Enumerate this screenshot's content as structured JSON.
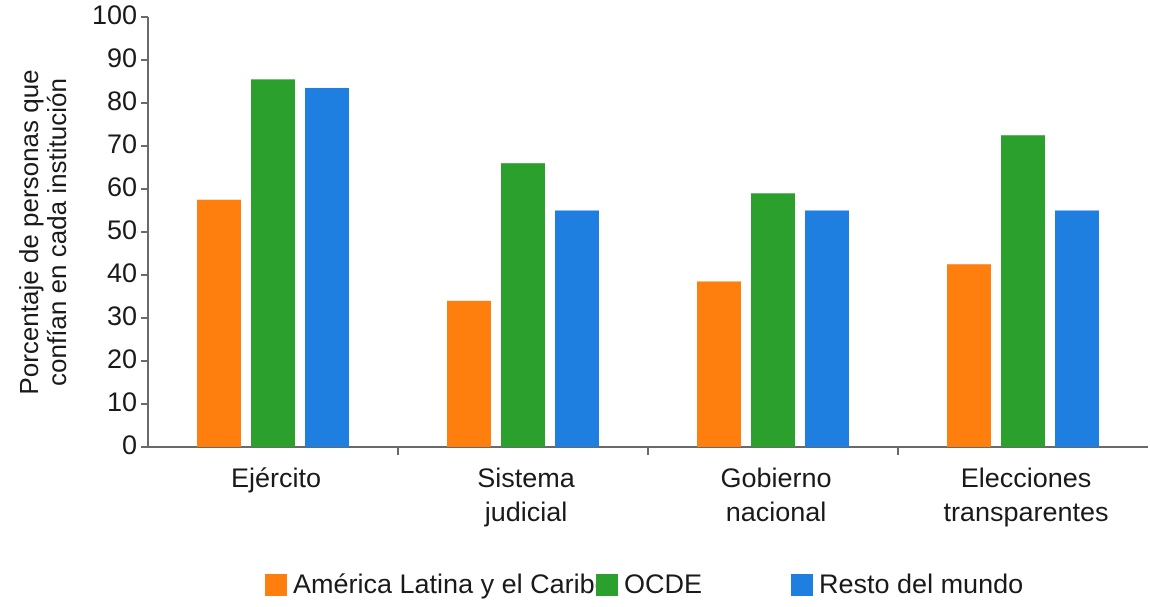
{
  "chart_data": {
    "type": "bar",
    "title": "",
    "xlabel": "",
    "ylabel_lines": [
      "Porcentaje de personas que",
      "confían en cada institución"
    ],
    "ylim": [
      0,
      100
    ],
    "yticks": [
      "0",
      "10",
      "20",
      "30",
      "40",
      "50",
      "60",
      "70",
      "80",
      "90",
      "100"
    ],
    "categories": [
      [
        "Ejército"
      ],
      [
        "Sistema",
        "judicial"
      ],
      [
        "Gobierno",
        "nacional"
      ],
      [
        "Elecciones",
        "transparentes"
      ]
    ],
    "series": [
      {
        "name": "América Latina y el Caribe",
        "color": "#ff7f0e",
        "values": [
          57.5,
          34,
          38.5,
          42.5
        ]
      },
      {
        "name": "OCDE",
        "color": "#2ca02c",
        "values": [
          85.5,
          66,
          59,
          72.5
        ]
      },
      {
        "name": "Resto del mundo",
        "color": "#1f7fe0",
        "values": [
          83.5,
          55,
          55,
          55
        ]
      }
    ],
    "grid": false,
    "legend_position": "bottom-center"
  }
}
